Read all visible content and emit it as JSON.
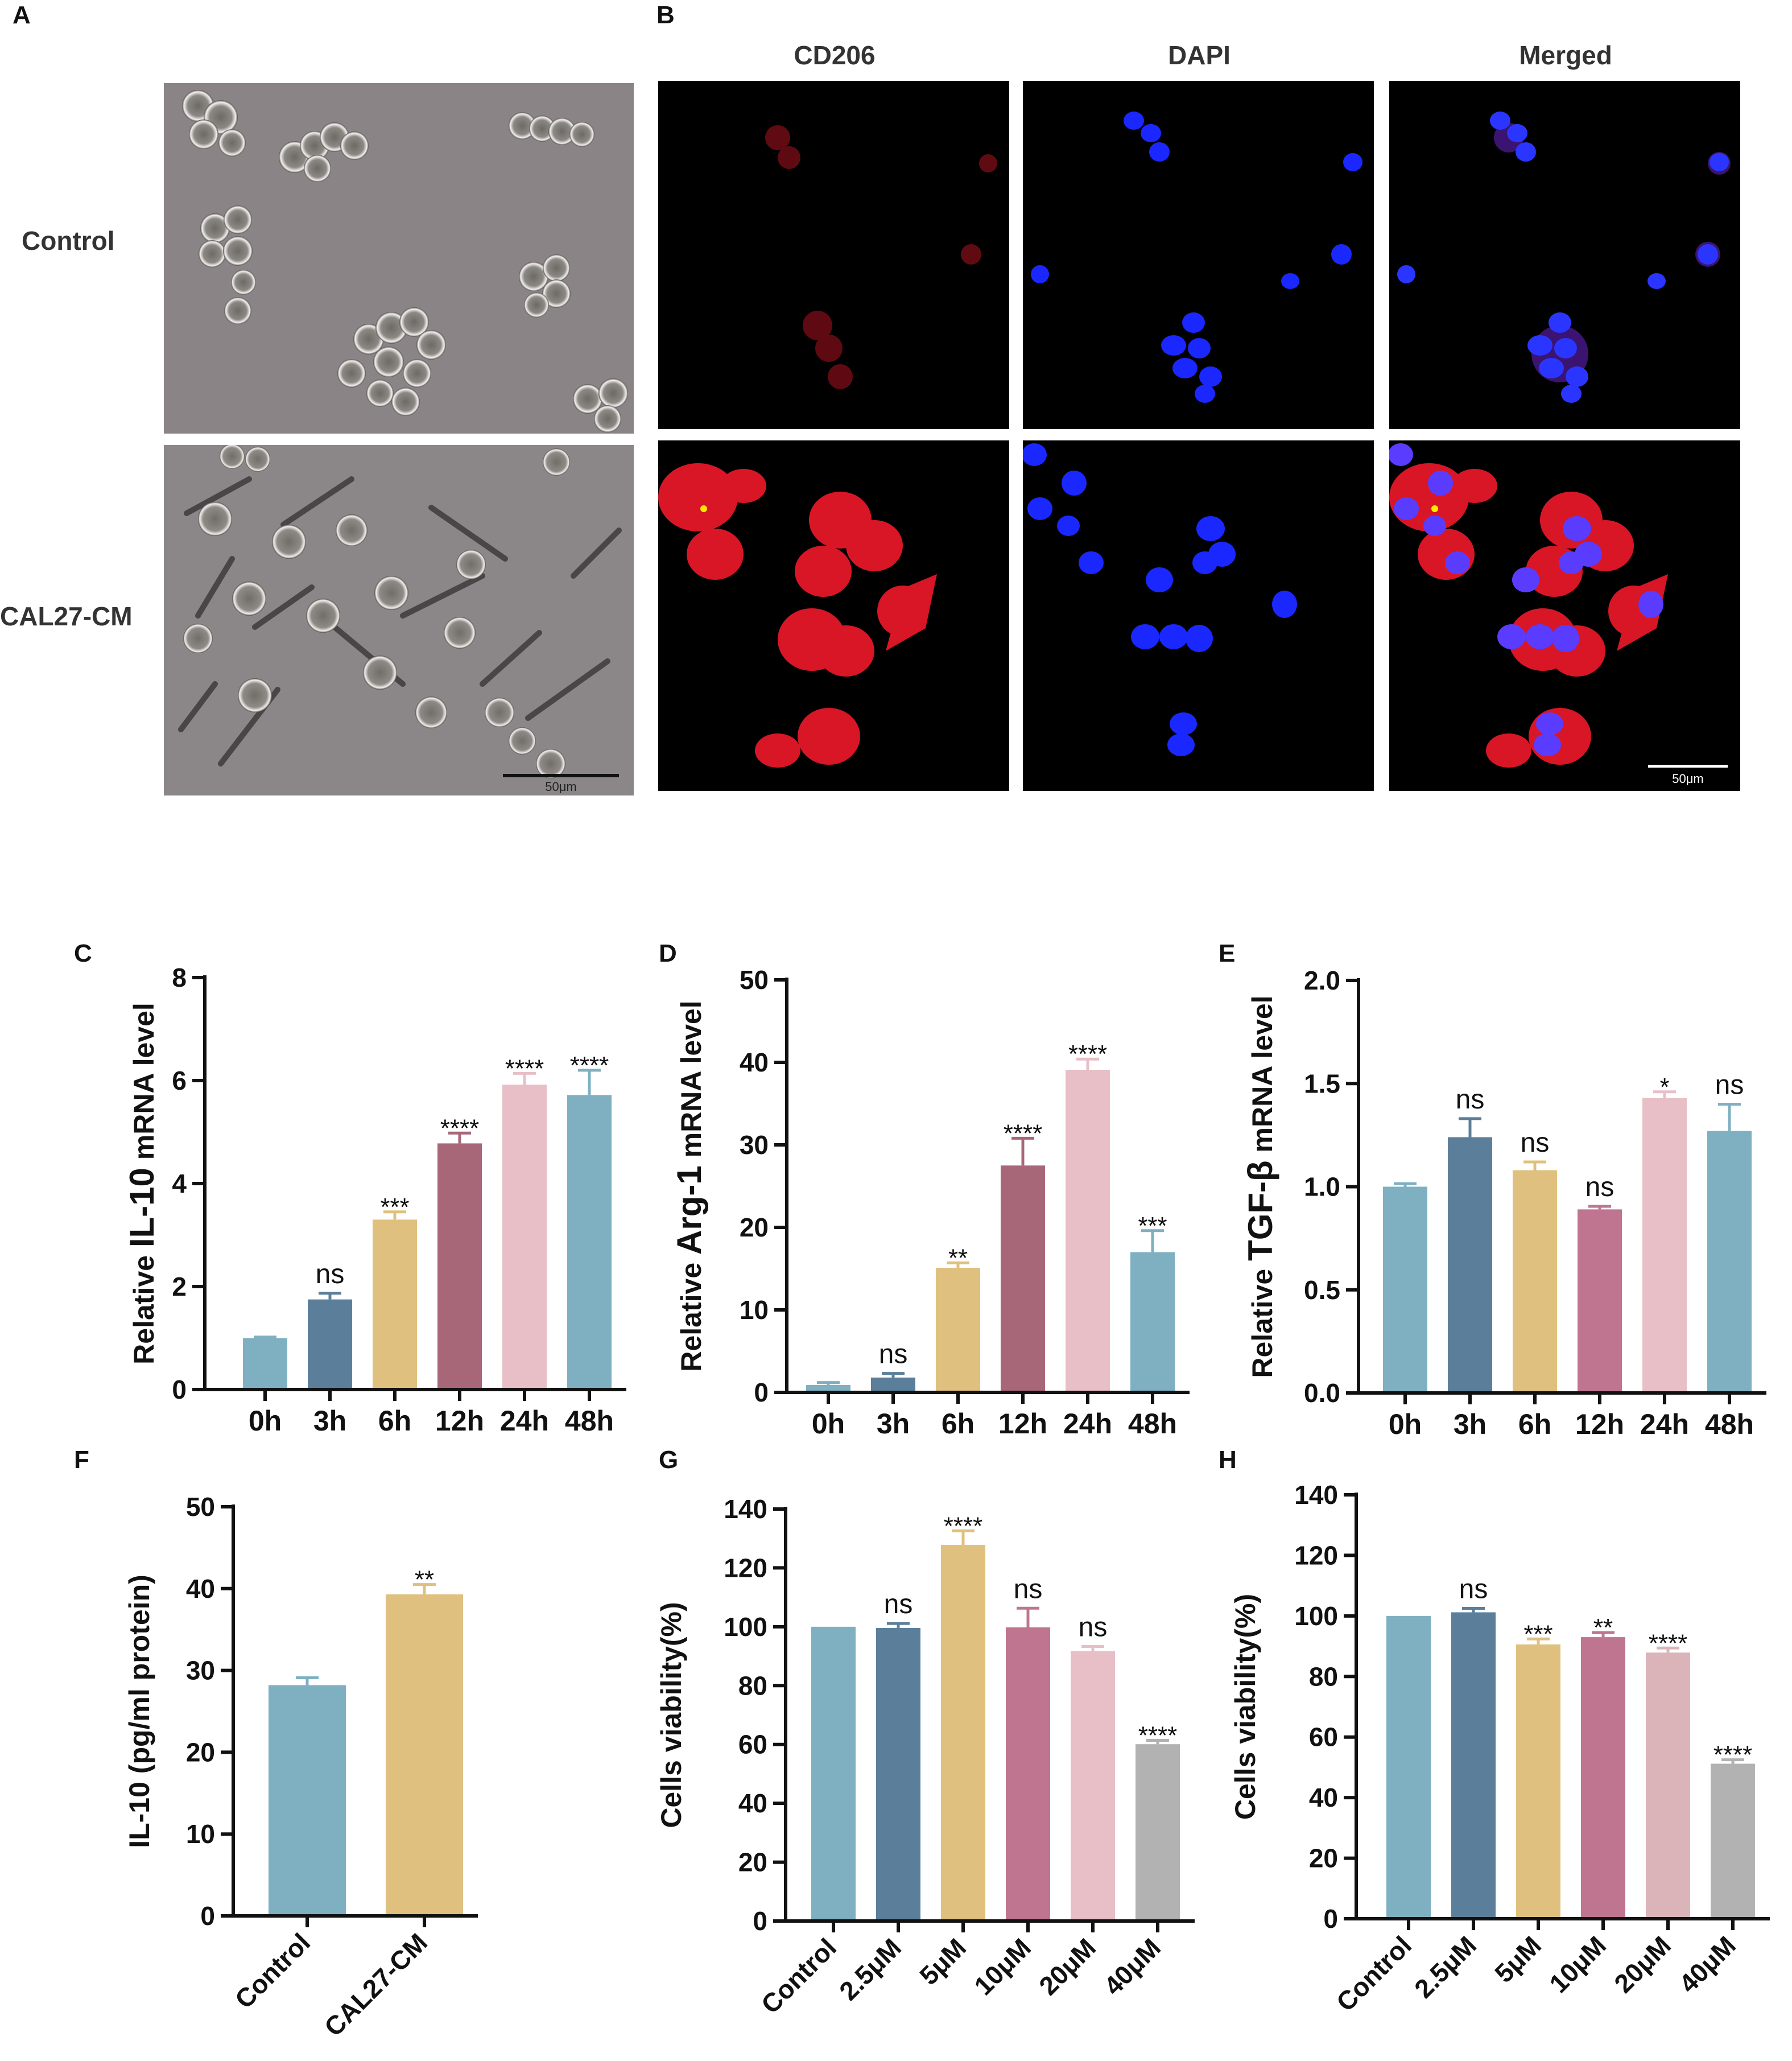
{
  "panel_a": {
    "letter": "A",
    "row_labels": [
      "Control",
      "CAL27-CM"
    ],
    "scale_bar": "50μm"
  },
  "panel_b": {
    "letter": "B",
    "columns": [
      "CD206",
      "DAPI",
      "Merged"
    ],
    "scale_bar": "50μm"
  },
  "colors": {
    "blue_light": "#7fb0c2",
    "blue_dark": "#5b7f9a",
    "tan": "#dfc07f",
    "rose": "#bf7490",
    "mauve": "#a86779",
    "pink": "#e8bfc6",
    "pink_light": "#dbb4ba",
    "gray": "#b2b2b2",
    "micro_bg": "#8a8487",
    "fluor_red": "#e0182a",
    "fluor_blue": "#1a28ff"
  },
  "chart_data": [
    {
      "id": "C",
      "letter": "C",
      "type": "bar",
      "ylabel_pre": "Relative ",
      "ylabel_bold": "IL-10",
      "ylabel_post": " mRNA level",
      "ylim": [
        0,
        8
      ],
      "yticks": [
        "0",
        "2",
        "4",
        "6",
        "8"
      ],
      "categories": [
        "0h",
        "3h",
        "6h",
        "12h",
        "24h",
        "48h"
      ],
      "values": [
        1.0,
        1.75,
        3.3,
        4.78,
        5.92,
        5.72
      ],
      "errors": [
        0.02,
        0.12,
        0.15,
        0.2,
        0.22,
        0.48
      ],
      "significance": [
        "",
        "ns",
        "***",
        "****",
        "****",
        "****"
      ],
      "colors": [
        "#7fb0c2",
        "#5b7f9a",
        "#dfc07f",
        "#a86779",
        "#e8bfc6",
        "#7fb0c2"
      ]
    },
    {
      "id": "D",
      "letter": "D",
      "type": "bar",
      "ylabel_pre": "Relative ",
      "ylabel_bold": "Arg-1",
      "ylabel_post": " mRNA level",
      "ylim": [
        0,
        50
      ],
      "yticks": [
        "0",
        "10",
        "20",
        "30",
        "40",
        "50"
      ],
      "categories": [
        "0h",
        "3h",
        "6h",
        "12h",
        "24h",
        "48h"
      ],
      "values": [
        0.9,
        1.8,
        15.1,
        27.5,
        39.1,
        17.0
      ],
      "errors": [
        0.3,
        0.5,
        0.6,
        3.3,
        1.3,
        2.6
      ],
      "significance": [
        "",
        "ns",
        "**",
        "****",
        "****",
        "***"
      ],
      "colors": [
        "#7fb0c2",
        "#5b7f9a",
        "#dfc07f",
        "#a86779",
        "#e8bfc6",
        "#7fb0c2"
      ]
    },
    {
      "id": "E",
      "letter": "E",
      "type": "bar",
      "ylabel_pre": "Relative ",
      "ylabel_bold": "TGF-β",
      "ylabel_post": " mRNA level",
      "ylim": [
        0,
        2.0
      ],
      "yticks": [
        "0.0",
        "0.5",
        "1.0",
        "1.5",
        "2.0"
      ],
      "categories": [
        "0h",
        "3h",
        "6h",
        "12h",
        "24h",
        "48h"
      ],
      "values": [
        1.0,
        1.24,
        1.08,
        0.89,
        1.43,
        1.27
      ],
      "errors": [
        0.015,
        0.09,
        0.04,
        0.015,
        0.03,
        0.13
      ],
      "significance": [
        "",
        "ns",
        "ns",
        "ns",
        "*",
        "ns"
      ],
      "colors": [
        "#7fb0c2",
        "#5b7f9a",
        "#dfc07f",
        "#bf7490",
        "#e8bfc6",
        "#7fb0c2"
      ]
    },
    {
      "id": "F",
      "letter": "F",
      "type": "bar",
      "ylabel_pre": "IL-10 (pg/ml protein)",
      "ylabel_bold": "",
      "ylabel_post": "",
      "ylim": [
        0,
        50
      ],
      "yticks": [
        "0",
        "10",
        "20",
        "30",
        "40",
        "50"
      ],
      "categories": [
        "Control",
        "CAL27-CM"
      ],
      "values": [
        28.2,
        39.3
      ],
      "errors": [
        0.9,
        1.2
      ],
      "significance": [
        "",
        "**"
      ],
      "colors": [
        "#7fb0c2",
        "#dfc07f"
      ]
    },
    {
      "id": "G",
      "letter": "G",
      "type": "bar",
      "ylabel_pre": "Cells viability(%)",
      "ylabel_bold": "",
      "ylabel_post": "",
      "ylim": [
        0,
        140
      ],
      "yticks": [
        "0",
        "20",
        "40",
        "60",
        "80",
        "100",
        "120",
        "140"
      ],
      "categories": [
        "Control",
        "2.5μM",
        "5μM",
        "10μM",
        "20μM",
        "40μM"
      ],
      "values": [
        100,
        99.6,
        127.8,
        99.8,
        91.7,
        60.1
      ],
      "errors": [
        0,
        1.5,
        4.8,
        6.5,
        1.6,
        1.3
      ],
      "significance": [
        "",
        "ns",
        "****",
        "ns",
        "ns",
        "****"
      ],
      "colors": [
        "#7fb0c2",
        "#5b7f9a",
        "#dfc07f",
        "#bf7490",
        "#e8bfc6",
        "#b2b2b2"
      ]
    },
    {
      "id": "H",
      "letter": "H",
      "type": "bar",
      "ylabel_pre": "Cells viability(%)",
      "ylabel_bold": "",
      "ylabel_post": "",
      "ylim": [
        0,
        140
      ],
      "yticks": [
        "0",
        "20",
        "40",
        "60",
        "80",
        "100",
        "120",
        "140"
      ],
      "categories": [
        "Control",
        "2.5μM",
        "5μM",
        "10μM",
        "20μM",
        "40μM"
      ],
      "values": [
        100,
        101.2,
        90.6,
        93.0,
        87.9,
        51.2
      ],
      "errors": [
        0,
        1.3,
        1.8,
        1.5,
        1.5,
        1.3
      ],
      "significance": [
        "",
        "ns",
        "***",
        "**",
        "****",
        "****"
      ],
      "colors": [
        "#7fb0c2",
        "#5b7f9a",
        "#dfc07f",
        "#bf7490",
        "#dbb4ba",
        "#b2b2b2"
      ]
    }
  ]
}
